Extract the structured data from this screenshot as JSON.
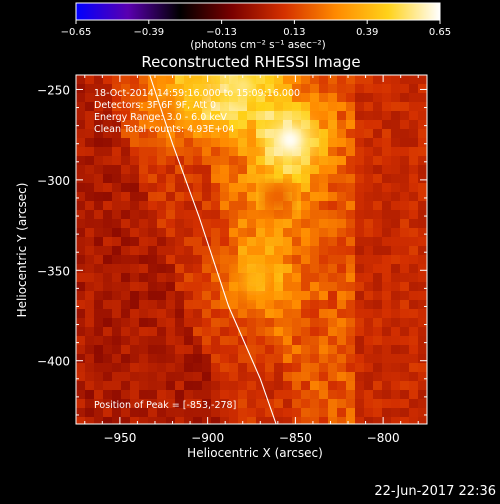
{
  "colorbar": {
    "ticks": [
      "-0.65",
      "-0.39",
      "-0.13",
      "0.13",
      "0.39",
      "0.65"
    ],
    "unit_label": "(photons cm⁻² s⁻¹ asec⁻²)",
    "range": [
      -0.65,
      0.65
    ],
    "colormap": [
      "#0000ff",
      "#5a00b0",
      "#000000",
      "#7a0000",
      "#d43000",
      "#ff8a00",
      "#ffd21a",
      "#ffffff"
    ]
  },
  "plot": {
    "title": "Reconstructed RHESSI Image",
    "annotations": [
      "18-Oct-2014 14:59:16.000 to 15:09:16.000",
      "Detectors: 3F 6F 9F, Att 0",
      "Energy Range: 3.0 - 6.0 keV",
      "Clean    Total counts: 4.93E+04"
    ],
    "peak_label": "Position of Peak = [-853,-278]",
    "timestamp": "22-Jun-2017 22:36"
  },
  "chart_data": {
    "type": "heatmap",
    "title": "Reconstructed RHESSI Image",
    "xlabel": "Heliocentric X (arcsec)",
    "ylabel": "Heliocentric Y (arcsec)",
    "xlim": [
      -975,
      -775
    ],
    "ylim": [
      -435,
      -242
    ],
    "x_ticks": [
      -950,
      -900,
      -850,
      -800
    ],
    "y_ticks": [
      -250,
      -300,
      -350,
      -400
    ],
    "x_tick_labels": [
      "−950",
      "−900",
      "−850",
      "−800"
    ],
    "y_tick_labels": [
      "−250",
      "−300",
      "−350",
      "−400"
    ],
    "units": "photons cm^-2 s^-1 asec^-2",
    "value_range": [
      -0.65,
      0.65
    ],
    "peak": {
      "x": -853,
      "y": -278,
      "value": 0.65
    },
    "sources": [
      {
        "x": -853,
        "y": -278,
        "intensity": 0.65
      },
      {
        "x": -880,
        "y": -248,
        "intensity": 0.55
      },
      {
        "x": -905,
        "y": -250,
        "intensity": 0.45
      },
      {
        "x": -873,
        "y": -355,
        "intensity": 0.4
      },
      {
        "x": -925,
        "y": -262,
        "intensity": 0.25
      },
      {
        "x": -860,
        "y": -310,
        "intensity": 0.2
      }
    ],
    "limb_curve": [
      [
        -933,
        -242
      ],
      [
        -920,
        -280
      ],
      [
        -905,
        -320
      ],
      [
        -888,
        -370
      ],
      [
        -870,
        -410
      ],
      [
        -861,
        -435
      ]
    ]
  }
}
